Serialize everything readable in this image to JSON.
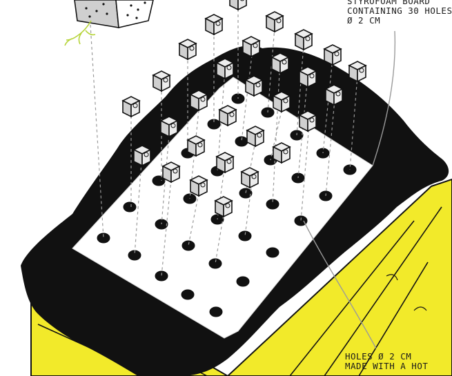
{
  "captions": {
    "top": [
      "STYROFOAM BOARD",
      "CONTAINING 30 HOLES",
      "Ø 2 CM"
    ],
    "bottom": [
      "HOLES Ø 2 CM",
      "MADE WITH A HOT"
    ]
  },
  "colors": {
    "wood": "#f2ea2a",
    "liner": "#111111",
    "board": "#ffffff",
    "plug": "#d8d8d8",
    "leader": "#9a9a9a",
    "sprout": "#b6d43a"
  },
  "icons": [
    "bee-hotel-block-icon",
    "sprout-icon",
    "plug-cube-icon"
  ]
}
